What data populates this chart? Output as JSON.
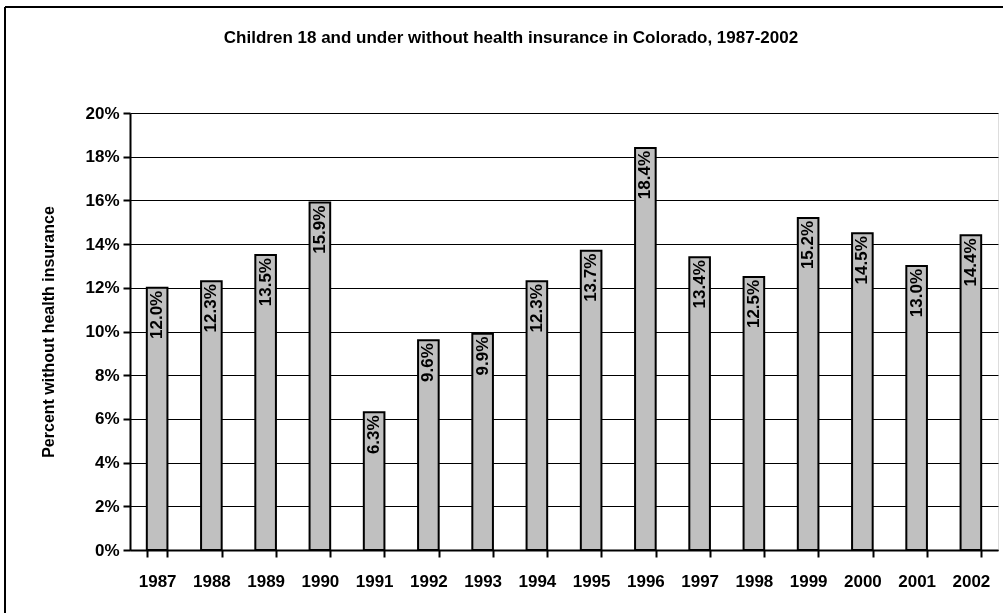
{
  "chart_data": {
    "type": "bar",
    "title": "Children 18 and under without health insurance in Colorado, 1987-2002",
    "ylabel": "Percent without health insurance",
    "categories": [
      "1987",
      "1988",
      "1989",
      "1990",
      "1991",
      "1992",
      "1993",
      "1994",
      "1995",
      "1996",
      "1997",
      "1998",
      "1999",
      "2000",
      "2001",
      "2002"
    ],
    "values": [
      12.0,
      12.3,
      13.5,
      15.9,
      6.3,
      9.6,
      9.9,
      12.3,
      13.7,
      18.4,
      13.4,
      12.5,
      15.2,
      14.5,
      13.0,
      14.4
    ],
    "value_labels": [
      "12.0%",
      "12.3%",
      "13.5%",
      "15.9%",
      "6.3%",
      "9.6%",
      "9.9%",
      "12.3%",
      "13.7%",
      "18.4%",
      "13.4%",
      "12.5%",
      "15.2%",
      "14.5%",
      "13.0%",
      "14.4%"
    ],
    "color": "#c0c0c0",
    "ylim": [
      0,
      20
    ],
    "yticks": [
      {
        "value": 0,
        "label": "0%"
      },
      {
        "value": 2,
        "label": "2%"
      },
      {
        "value": 4,
        "label": "4%"
      },
      {
        "value": 6,
        "label": "6%"
      },
      {
        "value": 8,
        "label": "8%"
      },
      {
        "value": 10,
        "label": "10%"
      },
      {
        "value": 12,
        "label": "12%"
      },
      {
        "value": 14,
        "label": "14%"
      },
      {
        "value": 16,
        "label": "16%"
      },
      {
        "value": 18,
        "label": "18%"
      },
      {
        "value": 20,
        "label": "20%"
      }
    ],
    "grid": "y"
  }
}
